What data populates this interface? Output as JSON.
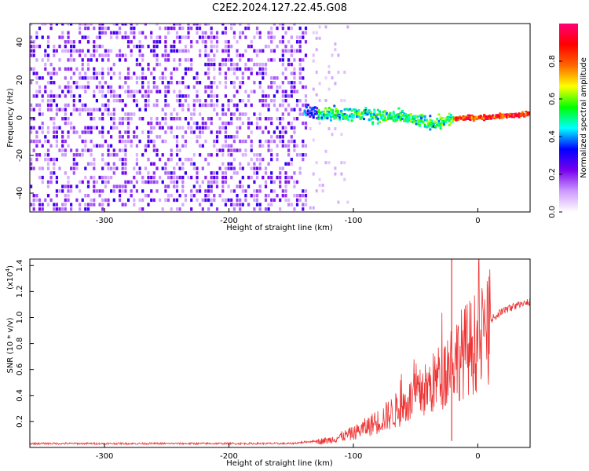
{
  "title": "C2E2.2024.127.22.45.G08",
  "chart_data": [
    {
      "type": "heatmap",
      "name": "spectrogram",
      "xlabel": "Height of straight line (km)",
      "ylabel": "Frequency (Hz)",
      "xlim": [
        -360,
        42
      ],
      "ylim": [
        -50,
        50
      ],
      "xticks": [
        -300,
        -200,
        -100,
        0
      ],
      "yticks": [
        -40,
        -20,
        0,
        20,
        40
      ],
      "signal_trace": [
        {
          "x": -135,
          "y": 3
        },
        {
          "x": -120,
          "y": 2
        },
        {
          "x": -100,
          "y": 2
        },
        {
          "x": -80,
          "y": 1
        },
        {
          "x": -60,
          "y": 0
        },
        {
          "x": -45,
          "y": -2
        },
        {
          "x": -35,
          "y": -3
        },
        {
          "x": -25,
          "y": -1
        },
        {
          "x": -10,
          "y": 0
        },
        {
          "x": 0,
          "y": 0
        },
        {
          "x": 20,
          "y": 1
        },
        {
          "x": 42,
          "y": 2
        }
      ],
      "colorbar": {
        "label": "Normalized spectral amplitude",
        "range": [
          0,
          1
        ],
        "ticks": [
          "0.0",
          "0.2",
          "0.4",
          "0.6",
          "0.8"
        ],
        "colors": [
          "#ffffff",
          "#cc99ff",
          "#7700ee",
          "#0000ff",
          "#00ffff",
          "#00ff00",
          "#ffff00",
          "#ff6600",
          "#ff0000",
          "#ff0077"
        ]
      }
    },
    {
      "type": "line",
      "name": "snr",
      "xlabel": "Height of straight line (km)",
      "ylabel": "SNR (10 * v/v)",
      "multiplier": "(x10",
      "multiplier_exp": "4",
      "xlim": [
        -360,
        42
      ],
      "ylim": [
        0,
        1.45
      ],
      "xticks": [
        -300,
        -200,
        -100,
        0
      ],
      "yticks": [
        0.2,
        0.4,
        0.6,
        0.8,
        1.0,
        1.2,
        1.4
      ],
      "color": "#ee3333",
      "envelope": [
        {
          "x": -360,
          "y": 0.03
        },
        {
          "x": -150,
          "y": 0.03
        },
        {
          "x": -120,
          "y": 0.06
        },
        {
          "x": -100,
          "y": 0.12
        },
        {
          "x": -80,
          "y": 0.22
        },
        {
          "x": -60,
          "y": 0.35
        },
        {
          "x": -40,
          "y": 0.5
        },
        {
          "x": -30,
          "y": 0.6
        },
        {
          "x": -22,
          "y": 0.72
        },
        {
          "x": -10,
          "y": 0.82
        },
        {
          "x": 0,
          "y": 0.9
        },
        {
          "x": 10,
          "y": 0.98
        },
        {
          "x": 20,
          "y": 1.05
        },
        {
          "x": 30,
          "y": 1.09
        },
        {
          "x": 42,
          "y": 1.12
        }
      ],
      "spike": {
        "x": -21,
        "y": 1.45
      }
    }
  ]
}
